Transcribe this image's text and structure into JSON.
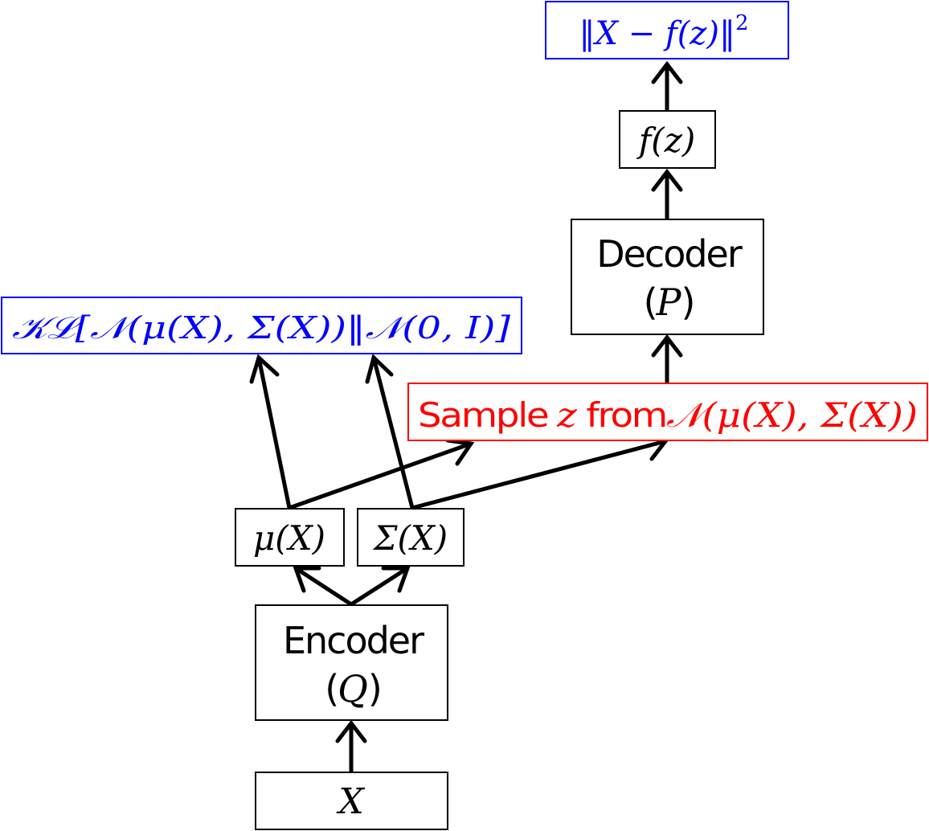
{
  "colors": {
    "loss": "#0000ff",
    "sampling": "#ff0000",
    "default": "#000000"
  },
  "nodes": {
    "input": {
      "label": "X"
    },
    "encoder": {
      "title": "Encoder",
      "subtitle_open": "(",
      "subtitle_var": "Q",
      "subtitle_close": ")"
    },
    "mu": {
      "label": "μ(X)"
    },
    "sigma": {
      "label": "Σ(X)"
    },
    "kl": {
      "label": "𝒦ℒ[𝒩(μ(X), Σ(X))‖𝒩(0, I)]"
    },
    "sample": {
      "word1": "Sample",
      "var": "z",
      "word2": "from",
      "dist": "𝒩(μ(X), Σ(X))"
    },
    "decoder": {
      "title": "Decoder",
      "subtitle_open": "(",
      "subtitle_var": "P",
      "subtitle_close": ")"
    },
    "fz": {
      "label": "f(z)"
    },
    "recon": {
      "label": "‖X − f(z)‖",
      "exponent": "2"
    }
  }
}
